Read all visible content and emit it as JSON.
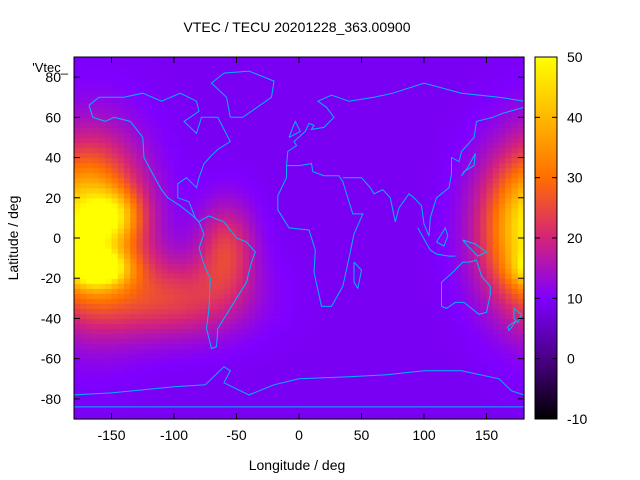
{
  "chart_data": {
    "type": "heatmap",
    "title": "VTEC / TECU 20201228_363.00900",
    "xlabel": "Longitude / deg",
    "ylabel": "Latitude / deg",
    "legend_label": "'Vtec_",
    "xlim": [
      -180,
      180
    ],
    "ylim": [
      -90,
      90
    ],
    "x_ticks": [
      -150,
      -100,
      -50,
      0,
      50,
      100,
      150
    ],
    "y_ticks": [
      -80,
      -60,
      -40,
      -20,
      0,
      20,
      40,
      60,
      80
    ],
    "colorbar": {
      "range": [
        -10,
        50
      ],
      "ticks": [
        -10,
        0,
        10,
        20,
        30,
        40,
        50
      ],
      "palette": [
        "#000000",
        "#4a0086",
        "#7f00ff",
        "#d4237a",
        "#ff6e00",
        "#ffb800",
        "#ffff00"
      ]
    },
    "background_value": 9,
    "hotspots": [
      {
        "name": "pacific-east-band",
        "lon": -160,
        "lat": 5,
        "value": 22,
        "sx": 28,
        "sy": 30
      },
      {
        "name": "pacific-peak-north",
        "lon": -148,
        "lat": 12,
        "value": 14,
        "sx": 14,
        "sy": 8
      },
      {
        "name": "pacific-peak-south",
        "lon": -160,
        "lat": -15,
        "value": 26,
        "sx": 16,
        "sy": 6
      },
      {
        "name": "south-pacific-tail",
        "lon": -100,
        "lat": -30,
        "value": 14,
        "sx": 40,
        "sy": 14
      },
      {
        "name": "south-america",
        "lon": -58,
        "lat": -5,
        "value": 14,
        "sx": 16,
        "sy": 16
      },
      {
        "name": "west-pacific-dateline",
        "lon": 180,
        "lat": 5,
        "value": 22,
        "sx": 26,
        "sy": 25
      }
    ],
    "map_overlay": "world coastlines"
  }
}
